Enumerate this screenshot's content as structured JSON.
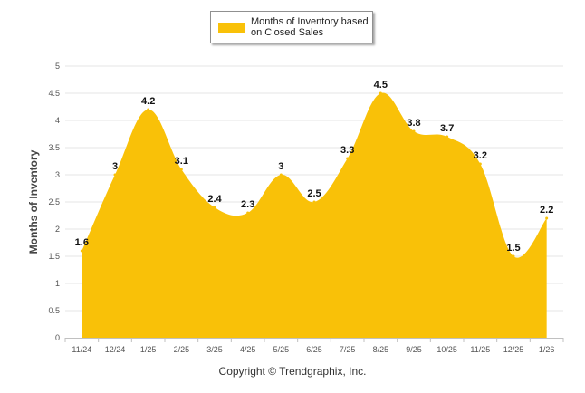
{
  "chart_data": {
    "type": "area",
    "title": "",
    "categories": [
      "11/24",
      "12/24",
      "1/25",
      "2/25",
      "3/25",
      "4/25",
      "5/25",
      "6/25",
      "7/25",
      "8/25",
      "9/25",
      "10/25",
      "11/25",
      "12/25",
      "1/26"
    ],
    "series": [
      {
        "name": "Months of Inventory based on Closed Sales",
        "values": [
          1.6,
          3,
          4.2,
          3.1,
          2.4,
          2.3,
          3,
          2.5,
          3.3,
          4.5,
          3.8,
          3.7,
          3.2,
          1.5,
          2.2
        ],
        "color": "#f9c108"
      }
    ],
    "data_labels": [
      "1.6",
      "3",
      "4.2",
      "3.1",
      "2.4",
      "2.3",
      "3",
      "2.5",
      "3.3",
      "4.5",
      "3.8",
      "3.7",
      "3.2",
      "1.5",
      "2.2"
    ],
    "ylabel": "Months of Inventory",
    "xlabel": "",
    "ylim": [
      0,
      5
    ],
    "yticks": [
      "0",
      "0.5",
      "1",
      "1.5",
      "2",
      "2.5",
      "3",
      "3.5",
      "4",
      "4.5",
      "5"
    ],
    "grid": true,
    "legend": {
      "position": "top-center",
      "label": "Months of Inventory based on Closed Sales"
    }
  },
  "footer": {
    "copyright": "Copyright © Trendgraphix, Inc."
  },
  "colors": {
    "area": "#f9c108",
    "grid": "#e6e6e6",
    "axis": "#c0c0c0"
  }
}
